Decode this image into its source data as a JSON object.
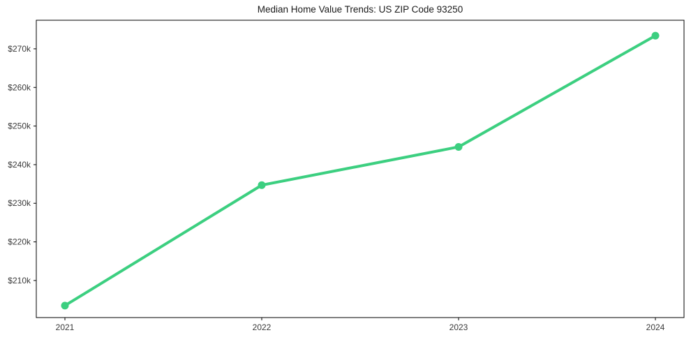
{
  "chart_data": {
    "type": "line",
    "title": "Median Home Value Trends: US ZIP Code 93250",
    "xlabel": "",
    "ylabel": "",
    "categories": [
      "2021",
      "2022",
      "2023",
      "2024"
    ],
    "series": [
      {
        "name": "Median home value",
        "values": [
          203500,
          234700,
          244600,
          273400
        ]
      }
    ],
    "yticks": [
      {
        "value": 210000,
        "label": "$210k"
      },
      {
        "value": 220000,
        "label": "$220k"
      },
      {
        "value": 230000,
        "label": "$230k"
      },
      {
        "value": 240000,
        "label": "$240k"
      },
      {
        "value": 250000,
        "label": "$250k"
      },
      {
        "value": 260000,
        "label": "$260k"
      },
      {
        "value": 270000,
        "label": "$270k"
      }
    ],
    "ylim": [
      200400,
      277400
    ],
    "grid": false,
    "legend": "none",
    "line_color": "#3ccf80",
    "marker": "circle",
    "frame_color": "#000000",
    "background_color": "#ffffff"
  }
}
